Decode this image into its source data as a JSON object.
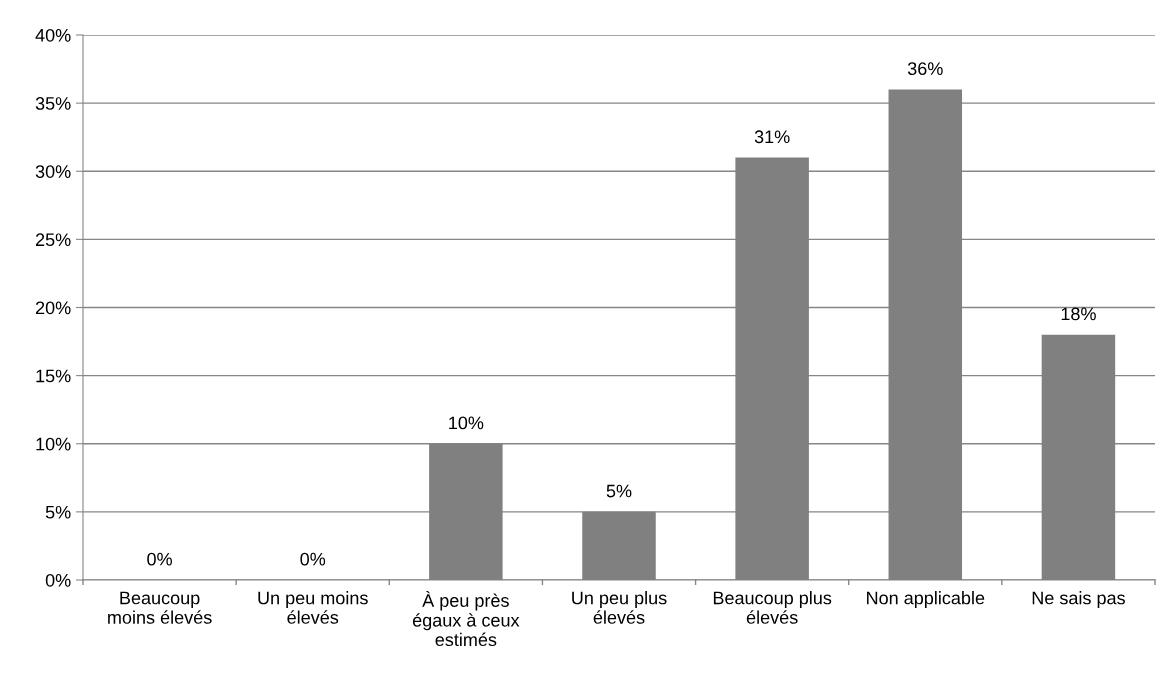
{
  "chart_data": {
    "type": "bar",
    "categories": [
      "Beaucoup\nmoins élevés",
      "Un peu moins\nélevés",
      "À peu près\négaux à ceux\nestimés",
      "Un peu plus\nélevés",
      "Beaucoup plus\nélevés",
      "Non applicable",
      "Ne sais pas"
    ],
    "values": [
      0,
      0,
      10,
      5,
      31,
      36,
      18
    ],
    "value_labels": [
      "0%",
      "0%",
      "10%",
      "5%",
      "31%",
      "36%",
      "18%"
    ],
    "color": "#808080",
    "ylim": [
      0,
      40
    ],
    "yticks": [
      {
        "value": 0,
        "label": "0%"
      },
      {
        "value": 5,
        "label": "5%"
      },
      {
        "value": 10,
        "label": "10%"
      },
      {
        "value": 15,
        "label": "15%"
      },
      {
        "value": 20,
        "label": "20%"
      },
      {
        "value": 25,
        "label": "25%"
      },
      {
        "value": 30,
        "label": "30%"
      },
      {
        "value": 35,
        "label": "35%"
      },
      {
        "value": 40,
        "label": "40%"
      }
    ],
    "grid": "y"
  }
}
